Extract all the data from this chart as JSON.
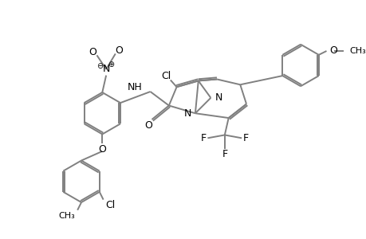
{
  "bg_color": "#ffffff",
  "line_color": "#808080",
  "lw": 1.4,
  "fs": 9,
  "figsize": [
    4.6,
    3.0
  ],
  "dpi": 100,
  "xlim": [
    0,
    460
  ],
  "ylim": [
    0,
    300
  ]
}
